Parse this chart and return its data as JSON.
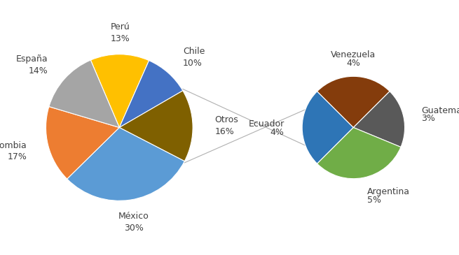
{
  "main_labels": [
    "Perú",
    "Chile",
    "Otros",
    "México",
    "Colombia",
    "España"
  ],
  "main_values": [
    13,
    10,
    16,
    30,
    17,
    14
  ],
  "main_colors": [
    "#FFC000",
    "#4472C4",
    "#7F6000",
    "#5B9BD5",
    "#ED7D31",
    "#A5A5A5"
  ],
  "main_pct": [
    "13%",
    "10%",
    "16%",
    "30%",
    "17%",
    "14%"
  ],
  "sub_labels": [
    "Ecuador",
    "Venezuela",
    "Guatemala",
    "Argentina"
  ],
  "sub_values": [
    4,
    4,
    3,
    5
  ],
  "sub_colors": [
    "#2E75B6",
    "#843C0C",
    "#595959",
    "#70AD47"
  ],
  "sub_pct": [
    "4%",
    "4%",
    "3%",
    "5%"
  ],
  "bg_color": "#FFFFFF",
  "label_fontsize": 9,
  "pct_fontsize": 9
}
